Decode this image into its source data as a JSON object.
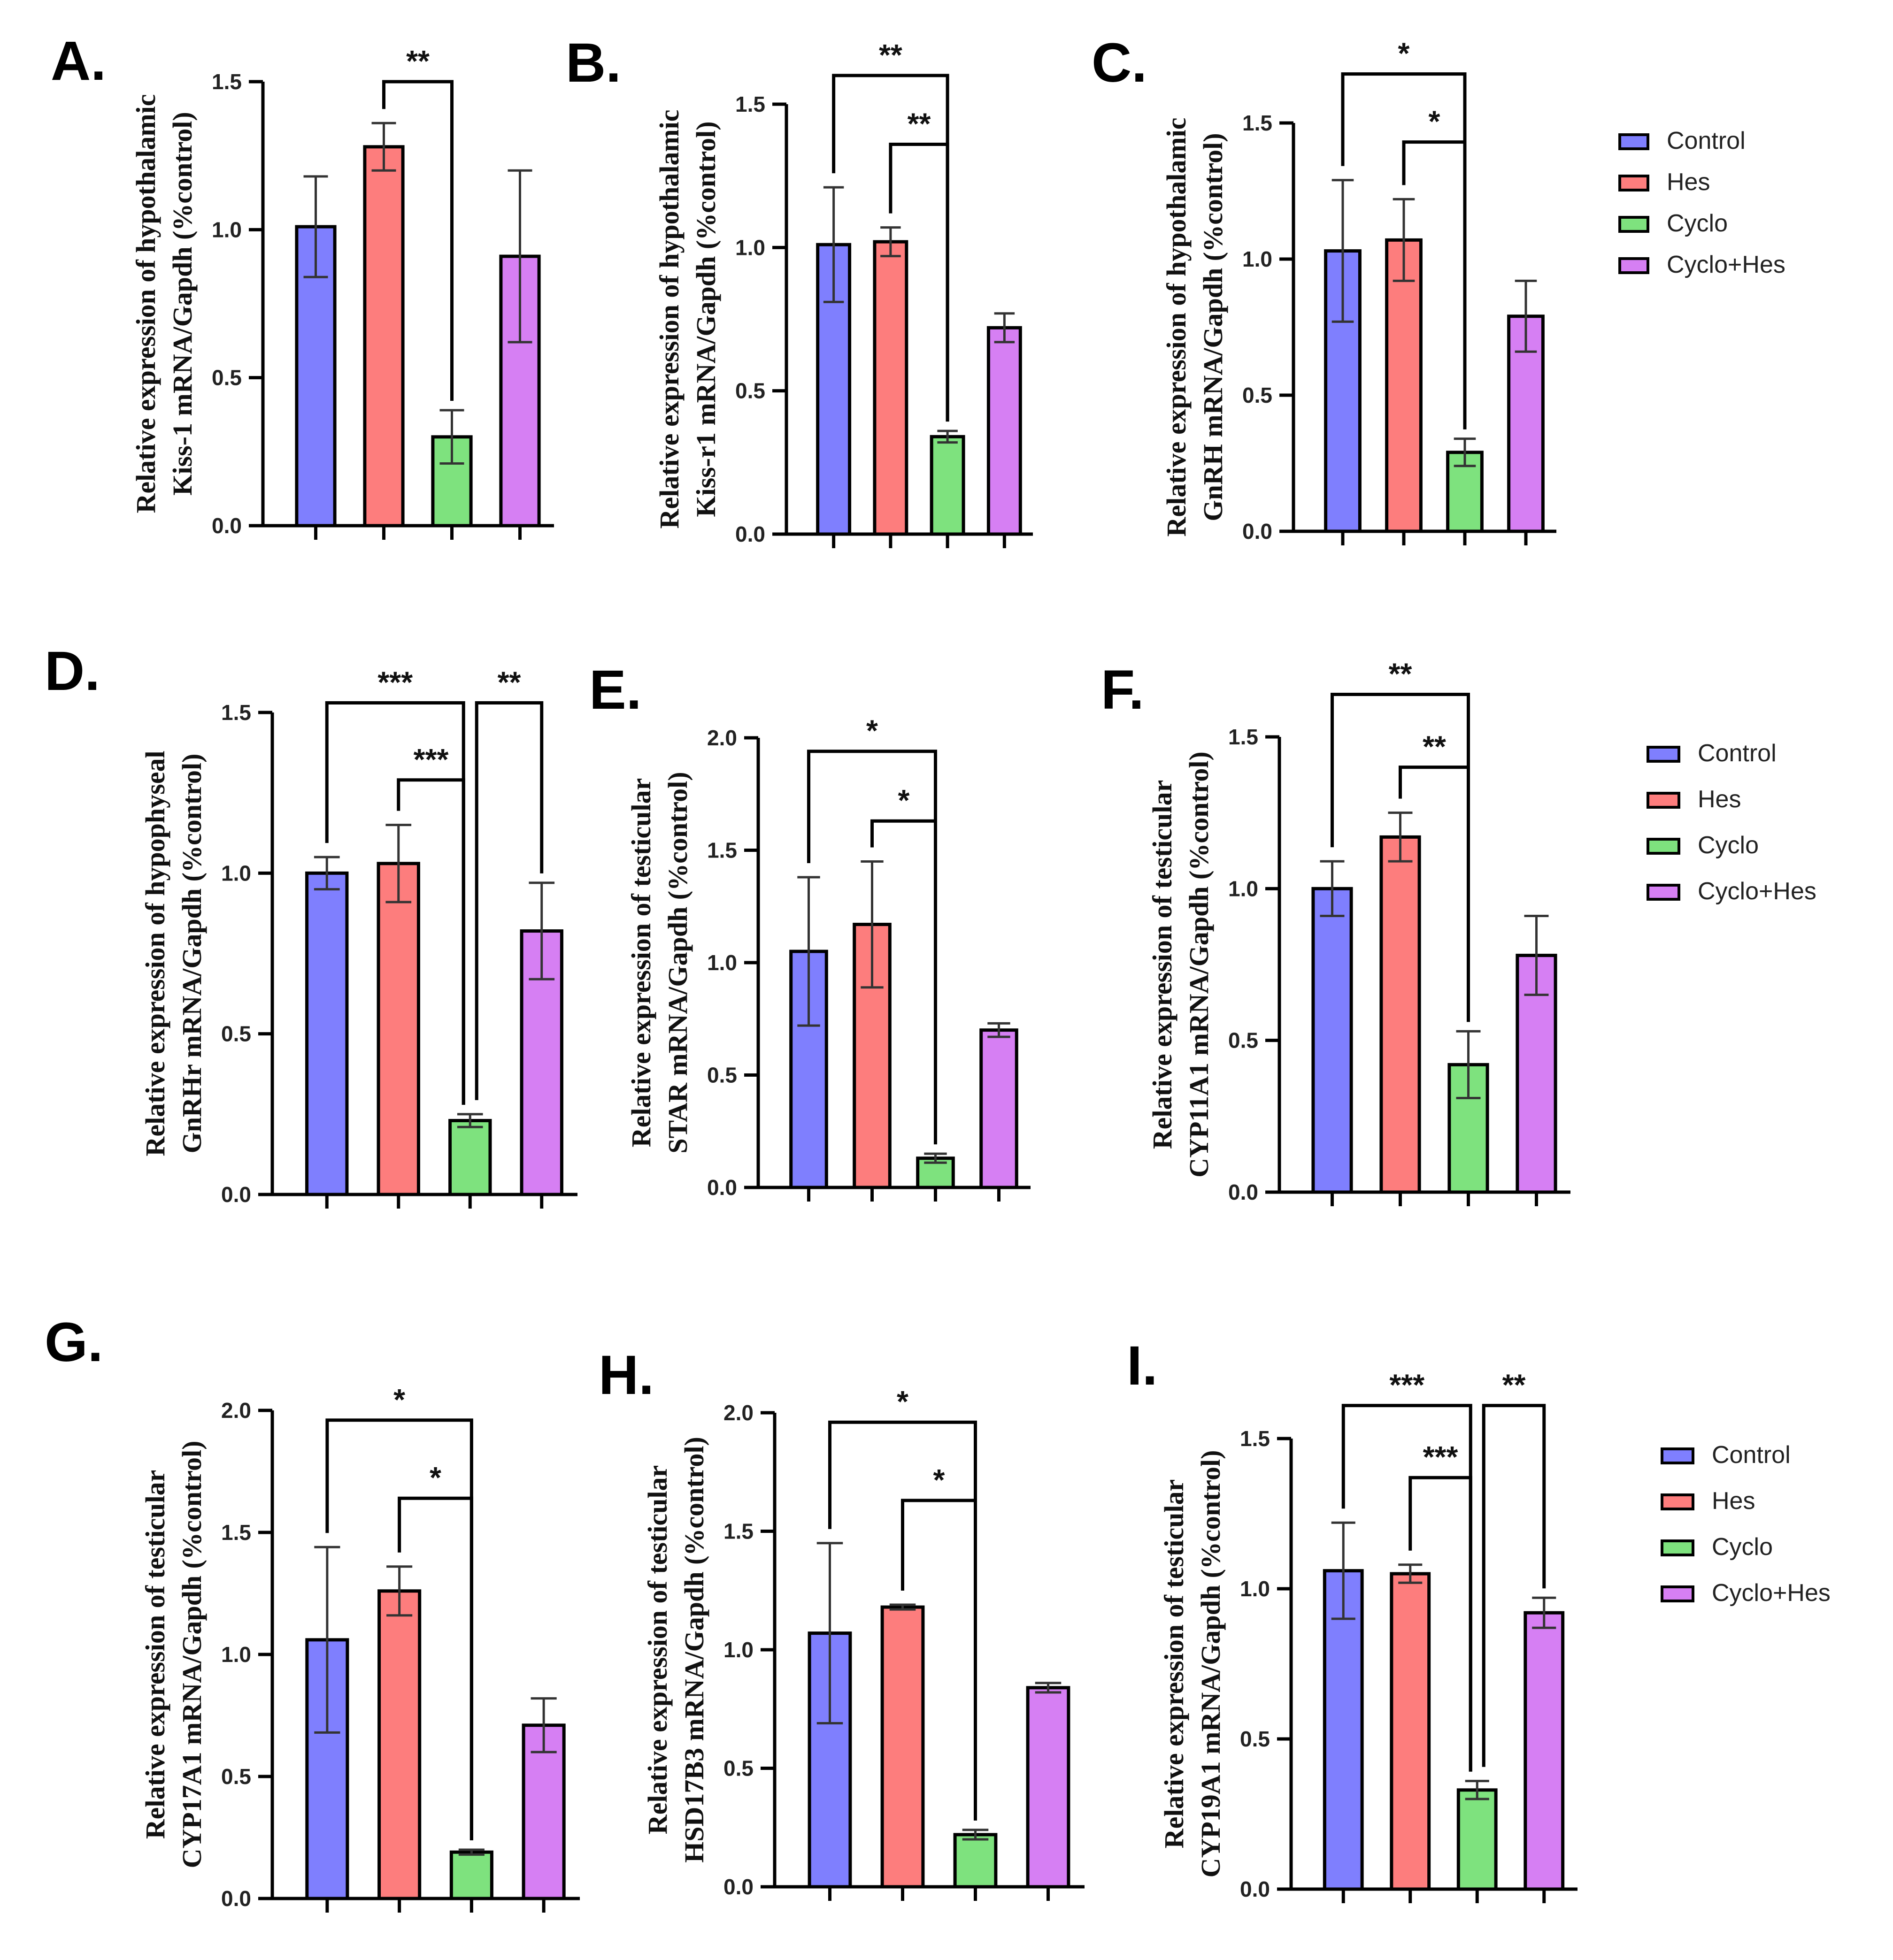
{
  "colors": {
    "Control": "#7f7ffe",
    "Hes": "#fd7d7d",
    "Cyclo": "#7ee27e",
    "Cyclo+Hes": "#d67ff3"
  },
  "legend": {
    "entries": [
      "Control",
      "Hes",
      "Cyclo",
      "Cyclo+Hes"
    ]
  },
  "chart_data": [
    {
      "type": "bar",
      "panel": "A.",
      "categories": [
        "Control",
        "Hes",
        "Cyclo",
        "Cyclo+Hes"
      ],
      "values": [
        1.01,
        1.28,
        0.3,
        0.91
      ],
      "errors": [
        0.17,
        0.08,
        0.09,
        0.29
      ],
      "ylabel": [
        "Relative expression of hypothalamic",
        "Kiss-1 mRNA/Gapdh (%control)"
      ],
      "ylim": [
        0,
        1.5
      ],
      "yticks": [
        0.0,
        0.5,
        1.0,
        1.5
      ],
      "yticklabels": [
        "0.0",
        "0.5",
        "1.0",
        "1.5"
      ],
      "significance": [
        {
          "from": 1,
          "to": 2,
          "label": "**",
          "level": 1.5
        }
      ]
    },
    {
      "type": "bar",
      "panel": "B.",
      "categories": [
        "Control",
        "Hes",
        "Cyclo",
        "Cyclo+Hes"
      ],
      "values": [
        1.01,
        1.02,
        0.34,
        0.72
      ],
      "errors": [
        0.2,
        0.05,
        0.02,
        0.05
      ],
      "ylabel": [
        "Relative expression of hypothalamic",
        "Kiss-r1 mRNA/Gapdh (%control)"
      ],
      "ylim": [
        0,
        1.5
      ],
      "yticks": [
        0.0,
        0.5,
        1.0,
        1.5
      ],
      "yticklabels": [
        "0.0",
        "0.5",
        "1.0",
        "1.5"
      ],
      "significance": [
        {
          "from": 0,
          "to": 2,
          "label": "**",
          "level": 1.6
        },
        {
          "from": 1,
          "to": 2,
          "label": "**",
          "level": 1.36
        }
      ]
    },
    {
      "type": "bar",
      "panel": "C.",
      "categories": [
        "Control",
        "Hes",
        "Cyclo",
        "Cyclo+Hes"
      ],
      "values": [
        1.03,
        1.07,
        0.29,
        0.79
      ],
      "errors": [
        0.26,
        0.15,
        0.05,
        0.13
      ],
      "ylabel": [
        "Relative expression of hypothalamic",
        "GnRH mRNA/Gapdh (%control)"
      ],
      "ylim": [
        0,
        1.5
      ],
      "yticks": [
        0.0,
        0.5,
        1.0,
        1.5
      ],
      "yticklabels": [
        "0.0",
        "0.5",
        "1.0",
        "1.5"
      ],
      "significance": [
        {
          "from": 0,
          "to": 2,
          "label": "*",
          "level": 1.68
        },
        {
          "from": 1,
          "to": 2,
          "label": "*",
          "level": 1.43
        }
      ]
    },
    {
      "type": "bar",
      "panel": "D.",
      "categories": [
        "Control",
        "Hes",
        "Cyclo",
        "Cyclo+Hes"
      ],
      "values": [
        1.0,
        1.03,
        0.23,
        0.82
      ],
      "errors": [
        0.05,
        0.12,
        0.02,
        0.15
      ],
      "ylabel": [
        "Relative expression of hypophyseal",
        "GnRHr mRNA/Gapdh (%control)"
      ],
      "ylim": [
        0,
        1.5
      ],
      "yticks": [
        0.0,
        0.5,
        1.0,
        1.5
      ],
      "yticklabels": [
        "0.0",
        "0.5",
        "1.0",
        "1.5"
      ],
      "significance": [
        {
          "from": 0,
          "to": 2,
          "label": "***",
          "level": 1.53
        },
        {
          "from": 2,
          "to": 3,
          "label": "**",
          "level": 1.53
        },
        {
          "from": 1,
          "to": 2,
          "label": "***",
          "level": 1.29
        }
      ]
    },
    {
      "type": "bar",
      "panel": "E.",
      "categories": [
        "Control",
        "Hes",
        "Cyclo",
        "Cyclo+Hes"
      ],
      "values": [
        1.05,
        1.17,
        0.13,
        0.7
      ],
      "errors": [
        0.33,
        0.28,
        0.02,
        0.03
      ],
      "ylabel": [
        "Relative expression of testicular",
        "STAR mRNA/Gapdh (%control)"
      ],
      "ylim": [
        0,
        2.0
      ],
      "yticks": [
        0.0,
        0.5,
        1.0,
        1.5,
        2.0
      ],
      "yticklabels": [
        "0.0",
        "0.5",
        "1.0",
        "1.5",
        "2.0"
      ],
      "significance": [
        {
          "from": 0,
          "to": 2,
          "label": "*",
          "level": 1.94
        },
        {
          "from": 1,
          "to": 2,
          "label": "*",
          "level": 1.63
        }
      ]
    },
    {
      "type": "bar",
      "panel": "F.",
      "categories": [
        "Control",
        "Hes",
        "Cyclo",
        "Cyclo+Hes"
      ],
      "values": [
        1.0,
        1.17,
        0.42,
        0.78
      ],
      "errors": [
        0.09,
        0.08,
        0.11,
        0.13
      ],
      "ylabel": [
        "Relative expression of testicular",
        "CYP11A1 mRNA/Gapdh (%control)"
      ],
      "ylim": [
        0,
        1.5
      ],
      "yticks": [
        0.0,
        0.5,
        1.0,
        1.5
      ],
      "yticklabels": [
        "0.0",
        "0.5",
        "1.0",
        "1.5"
      ],
      "significance": [
        {
          "from": 0,
          "to": 2,
          "label": "**",
          "level": 1.64
        },
        {
          "from": 1,
          "to": 2,
          "label": "**",
          "level": 1.4
        }
      ]
    },
    {
      "type": "bar",
      "panel": "G.",
      "categories": [
        "Control",
        "Hes",
        "Cyclo",
        "Cyclo+Hes"
      ],
      "values": [
        1.06,
        1.26,
        0.19,
        0.71
      ],
      "errors": [
        0.38,
        0.1,
        0.01,
        0.11
      ],
      "ylabel": [
        "Relative expression of testicular",
        "CYP17A1 mRNA/Gapdh (%control)"
      ],
      "ylim": [
        0,
        2.0
      ],
      "yticks": [
        0.0,
        0.5,
        1.0,
        1.5,
        2.0
      ],
      "yticklabels": [
        "0.0",
        "0.5",
        "1.0",
        "1.5",
        "2.0"
      ],
      "significance": [
        {
          "from": 0,
          "to": 2,
          "label": "*",
          "level": 1.96
        },
        {
          "from": 1,
          "to": 2,
          "label": "*",
          "level": 1.64
        }
      ]
    },
    {
      "type": "bar",
      "panel": "H.",
      "categories": [
        "Control",
        "Hes",
        "Cyclo",
        "Cyclo+Hes"
      ],
      "values": [
        1.07,
        1.18,
        0.22,
        0.84
      ],
      "errors": [
        0.38,
        0.01,
        0.02,
        0.02
      ],
      "ylabel": [
        "Relative expression of testicular",
        "HSD17B3 mRNA/Gapdh (%control)"
      ],
      "ylim": [
        0,
        2.0
      ],
      "yticks": [
        0.0,
        0.5,
        1.0,
        1.5,
        2.0
      ],
      "yticklabels": [
        "0.0",
        "0.5",
        "1.0",
        "1.5",
        "2.0"
      ],
      "significance": [
        {
          "from": 0,
          "to": 2,
          "label": "*",
          "level": 1.96
        },
        {
          "from": 1,
          "to": 2,
          "label": "*",
          "level": 1.63
        }
      ]
    },
    {
      "type": "bar",
      "panel": "I.",
      "categories": [
        "Control",
        "Hes",
        "Cyclo",
        "Cyclo+Hes"
      ],
      "values": [
        1.06,
        1.05,
        0.33,
        0.92
      ],
      "errors": [
        0.16,
        0.03,
        0.03,
        0.05
      ],
      "ylabel": [
        "Relative expression of testicular",
        "CYP19A1 mRNA/Gapdh (%control)"
      ],
      "ylim": [
        0,
        1.5
      ],
      "yticks": [
        0.0,
        0.5,
        1.0,
        1.5
      ],
      "yticklabels": [
        "0.0",
        "0.5",
        "1.0",
        "1.5"
      ],
      "significance": [
        {
          "from": 0,
          "to": 2,
          "label": "***",
          "level": 1.61
        },
        {
          "from": 2,
          "to": 3,
          "label": "**",
          "level": 1.61
        },
        {
          "from": 1,
          "to": 2,
          "label": "***",
          "level": 1.37
        }
      ]
    }
  ]
}
